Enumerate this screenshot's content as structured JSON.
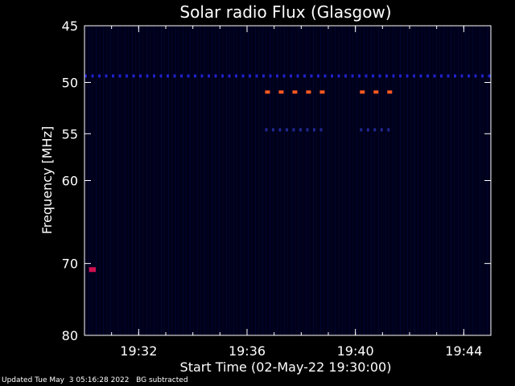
{
  "chart_data": {
    "type": "heatmap",
    "title": "Solar radio Flux (Glasgow)",
    "xlabel": "Start Time (02-May-22 19:30:00)",
    "ylabel": "Frequency [MHz]",
    "x_range": [
      "19:30:00",
      "19:45:00"
    ],
    "ylim": [
      45,
      80
    ],
    "y_scale": "log",
    "y_inverted": true,
    "x_ticks": [
      "19:32",
      "19:36",
      "19:40",
      "19:44"
    ],
    "y_ticks": [
      45,
      50,
      55,
      60,
      70,
      80
    ],
    "background_color": "#00001a",
    "features": [
      {
        "freq": 49.4,
        "start": "19:30:00",
        "end": "19:45:00",
        "color": "#2020c8",
        "pattern": "dashed"
      },
      {
        "freq": 50.9,
        "start": "19:36:40",
        "end": "19:38:50",
        "color": "#ff5a20",
        "pattern": "dashed"
      },
      {
        "freq": 50.9,
        "start": "19:40:10",
        "end": "19:41:20",
        "color": "#ff5a20",
        "pattern": "dashed"
      },
      {
        "freq": 54.6,
        "start": "19:36:40",
        "end": "19:38:50",
        "color": "#202890",
        "pattern": "dashed"
      },
      {
        "freq": 54.6,
        "start": "19:40:10",
        "end": "19:41:20",
        "color": "#202890",
        "pattern": "dashed"
      },
      {
        "freq": 70.8,
        "start": "19:30:10",
        "end": "19:30:25",
        "color": "#d01050",
        "pattern": "spot"
      }
    ]
  },
  "footer": {
    "updated": "Updated Tue May  3 05:16:28 2022",
    "note": "BG subtracted"
  }
}
